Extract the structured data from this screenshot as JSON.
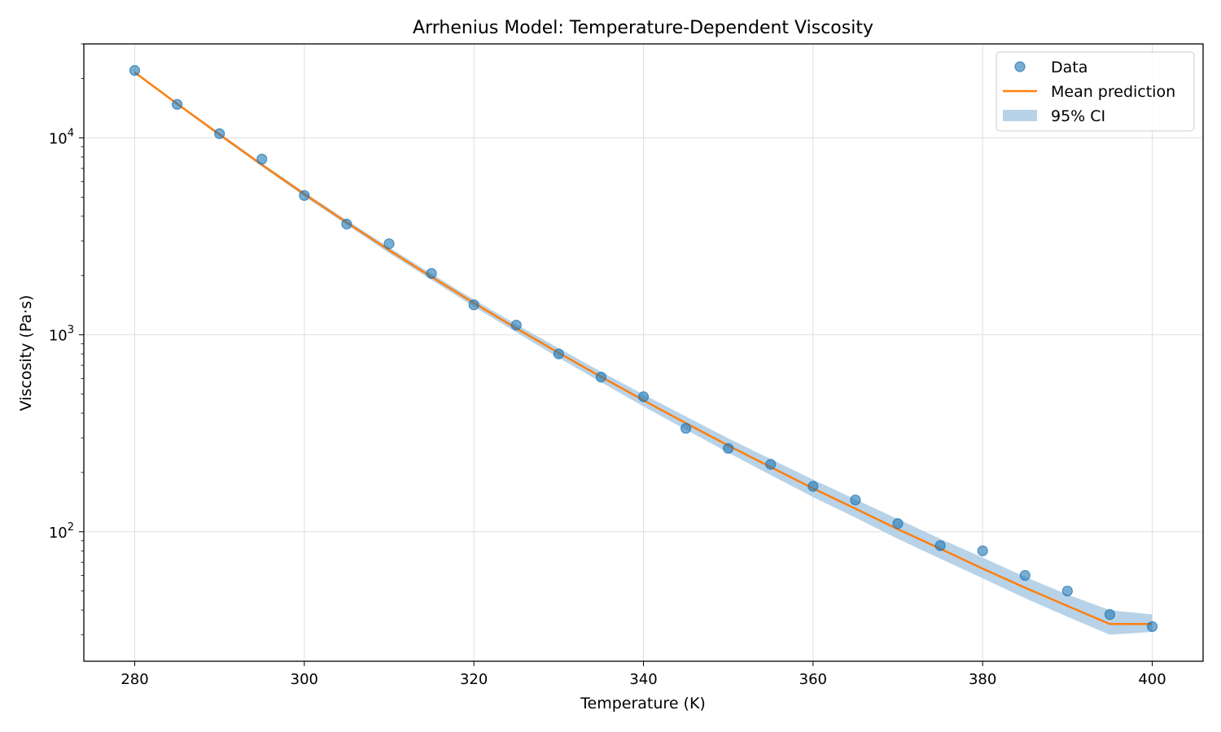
{
  "chart_data": {
    "type": "scatter",
    "title": "Arrhenius Model: Temperature-Dependent Viscosity",
    "xlabel": "Temperature (K)",
    "ylabel": "Viscosity (Pa·s)",
    "xlim": [
      274,
      406
    ],
    "ylim": [
      22,
      30000
    ],
    "yscale": "log",
    "grid": true,
    "legend_position": "top-right",
    "x_ticks": [
      280,
      300,
      320,
      340,
      360,
      380,
      400
    ],
    "x_tick_labels": [
      "280",
      "300",
      "320",
      "340",
      "360",
      "380",
      "400"
    ],
    "y_ticks": [
      100,
      1000,
      10000
    ],
    "y_tick_labels": [
      {
        "base": "10",
        "exp": "2"
      },
      {
        "base": "10",
        "exp": "3"
      },
      {
        "base": "10",
        "exp": "4"
      }
    ],
    "colors": {
      "data": "#1f77b4",
      "mean": "#ff7f0e",
      "ci": "#a6c8e2",
      "grid": "#e0e0e0"
    },
    "series": [
      {
        "name": "Data",
        "kind": "scatter",
        "x": [
          280,
          285,
          290,
          295,
          300,
          305,
          310,
          315,
          320,
          325,
          330,
          335,
          340,
          345,
          350,
          355,
          360,
          365,
          370,
          375,
          380,
          385,
          390,
          395,
          400
        ],
        "y": [
          22000,
          14800,
          10500,
          7800,
          5100,
          3650,
          2900,
          2050,
          1420,
          1120,
          800,
          610,
          485,
          335,
          265,
          220,
          170,
          145,
          110,
          85,
          80,
          60,
          50,
          38,
          33
        ]
      },
      {
        "name": "Mean prediction",
        "kind": "line",
        "x": [
          280,
          285,
          290,
          295,
          300,
          305,
          310,
          315,
          320,
          325,
          330,
          335,
          340,
          345,
          350,
          355,
          360,
          365,
          370,
          375,
          380,
          385,
          390,
          395,
          400
        ],
        "y": [
          21500,
          14900,
          10400,
          7300,
          5180,
          3720,
          2690,
          1970,
          1450,
          1080,
          810,
          612,
          465,
          356,
          274,
          213,
          166,
          131,
          103,
          82,
          65,
          52,
          42,
          34,
          34
        ]
      },
      {
        "name": "95% CI",
        "kind": "band",
        "x": [
          280,
          285,
          290,
          295,
          300,
          305,
          310,
          315,
          320,
          325,
          330,
          335,
          340,
          345,
          350,
          355,
          360,
          365,
          370,
          375,
          380,
          385,
          390,
          395,
          400
        ],
        "lower": [
          21200,
          14700,
          10200,
          7150,
          5050,
          3620,
          2600,
          1900,
          1390,
          1030,
          765,
          575,
          433,
          330,
          252,
          194,
          150,
          118,
          92,
          73,
          58,
          46,
          37,
          30,
          31
        ],
        "upper": [
          21800,
          15100,
          10600,
          7450,
          5310,
          3820,
          2780,
          2040,
          1510,
          1130,
          855,
          650,
          498,
          385,
          298,
          234,
          184,
          146,
          116,
          92,
          74,
          59,
          48,
          40,
          38
        ]
      }
    ]
  }
}
